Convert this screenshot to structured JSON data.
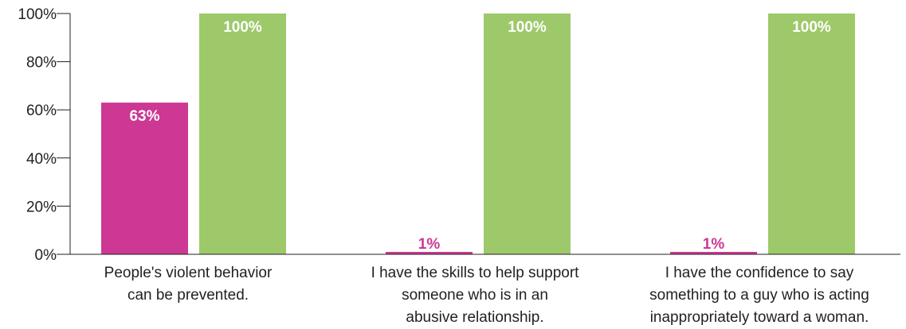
{
  "chart_data": {
    "type": "bar",
    "categories": [
      [
        "People's violent behavior",
        "can be prevented."
      ],
      [
        "I have the skills to help support",
        "someone who is in an",
        "abusive relationship."
      ],
      [
        "I have the confidence to say",
        "something to a guy who is acting",
        "inappropriately toward a woman."
      ]
    ],
    "series": [
      {
        "values": [
          63,
          1,
          1
        ],
        "labels": [
          "63%",
          "1%",
          "1%"
        ],
        "color": "#cc3894",
        "label_color_outside": "#cc3894"
      },
      {
        "values": [
          100,
          100,
          100
        ],
        "labels": [
          "100%",
          "100%",
          "100%"
        ],
        "color": "#9dc96a"
      }
    ],
    "ylim": [
      0,
      100
    ],
    "yticks": [
      0,
      20,
      40,
      60,
      80,
      100
    ],
    "ytick_labels": [
      "0%",
      "20%",
      "40%",
      "60%",
      "80%",
      "100%"
    ],
    "title": "",
    "xlabel": "",
    "ylabel": "",
    "grid": false,
    "legend": "none"
  }
}
